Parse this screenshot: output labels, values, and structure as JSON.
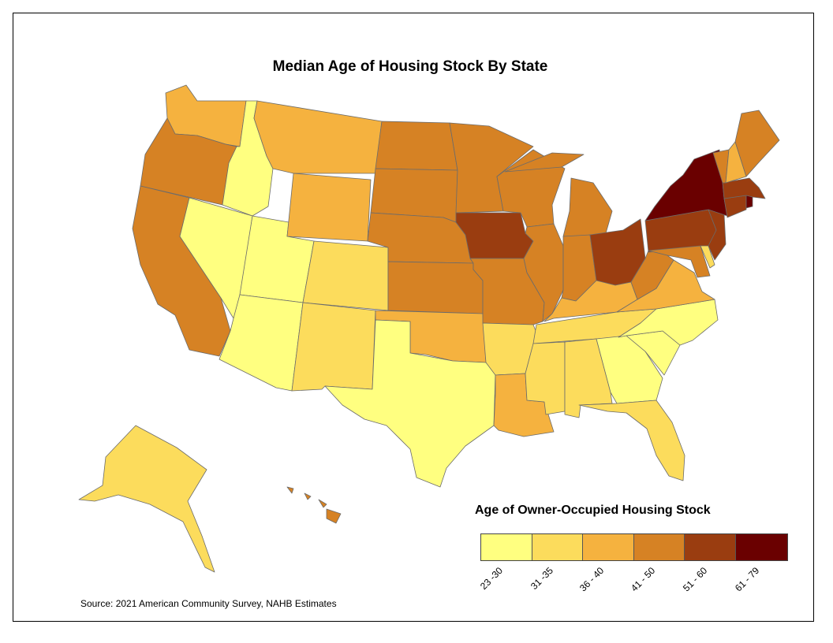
{
  "title": "Median Age of Housing Stock By State",
  "legend": {
    "title": "Age of Owner-Occupied Housing Stock",
    "classes": [
      {
        "label": "23 -30",
        "color": "#ffff80"
      },
      {
        "label": "31 -35",
        "color": "#fcdc5c"
      },
      {
        "label": "36 - 40",
        "color": "#f5b23f"
      },
      {
        "label": "41 - 50",
        "color": "#d68224"
      },
      {
        "label": "51 - 60",
        "color": "#9a3d10"
      },
      {
        "label": "61 - 79",
        "color": "#6a0000"
      }
    ]
  },
  "source": "Source: 2021 American Community Survey, NAHB Estimates",
  "states": {
    "WA": "36 - 40",
    "OR": "41 - 50",
    "CA": "41 - 50",
    "ID": "23 -30",
    "NV": "23 -30",
    "UT": "23 -30",
    "AZ": "23 -30",
    "MT": "36 - 40",
    "WY": "36 - 40",
    "CO": "31 -35",
    "NM": "31 -35",
    "ND": "41 - 50",
    "SD": "41 - 50",
    "NE": "41 - 50",
    "KS": "41 - 50",
    "OK": "36 - 40",
    "TX": "23 -30",
    "MN": "41 - 50",
    "IA": "51 - 60",
    "MO": "41 - 50",
    "AR": "31 -35",
    "LA": "36 - 40",
    "WI": "41 - 50",
    "IL": "41 - 50",
    "MI": "41 - 50",
    "IN": "41 - 50",
    "OH": "51 - 60",
    "KY": "36 - 40",
    "TN": "31 -35",
    "MS": "31 -35",
    "AL": "31 -35",
    "GA": "23 -30",
    "FL": "31 -35",
    "SC": "23 -30",
    "NC": "23 -30",
    "VA": "36 - 40",
    "WV": "41 - 50",
    "PA": "51 - 60",
    "NY": "61 - 79",
    "MD": "41 - 50",
    "DE": "31 -35",
    "NJ": "51 - 60",
    "CT": "51 - 60",
    "RI": "61 - 79",
    "MA": "51 - 60",
    "VT": "41 - 50",
    "NH": "36 - 40",
    "ME": "41 - 50",
    "AK": "31 -35",
    "HI": "41 - 50"
  }
}
